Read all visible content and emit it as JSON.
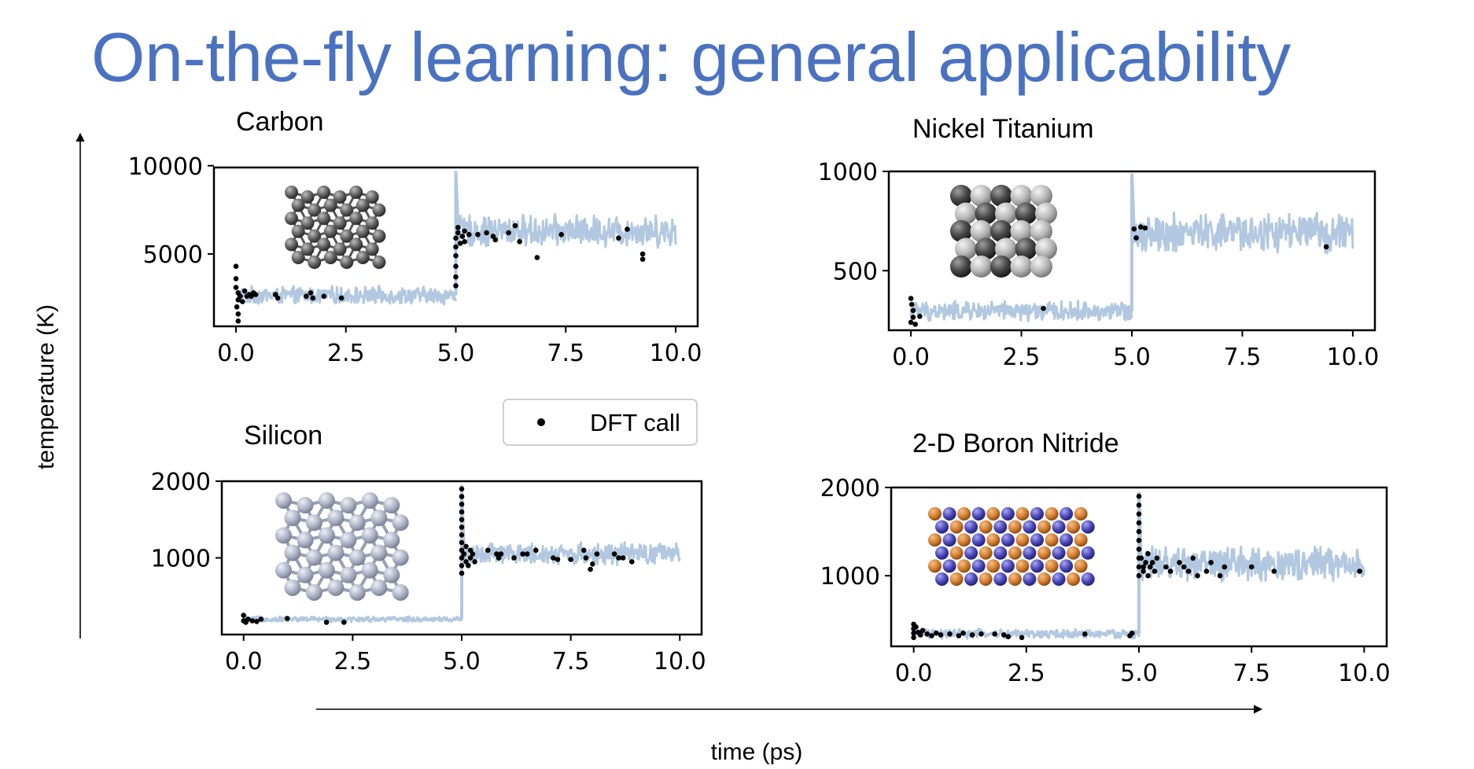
{
  "slide": {
    "title": "On-the-fly learning: general applicability",
    "y_axis_label": "temperature (K)",
    "x_axis_label": "time (ps)"
  },
  "legend": {
    "entries": [
      {
        "label": "DFT call",
        "marker": "black-dot"
      }
    ]
  },
  "colors": {
    "title": "#4a72c1",
    "trajectory": "#b1c8e0",
    "dft_call": "#000000",
    "frame": "#000000"
  },
  "chart_data": [
    {
      "type": "line",
      "title": "Carbon",
      "structure_icon": "carbon-diamond-lattice",
      "xlim": [
        -0.5,
        10.5
      ],
      "ylim": [
        900,
        9900
      ],
      "xticks": [
        0.0,
        2.5,
        5.0,
        7.5,
        10.0
      ],
      "yticks": [
        5000,
        10000
      ],
      "series": [
        {
          "kind": "trajectory",
          "segments": [
            {
              "x0": 0.0,
              "x1": 5.0,
              "mean": 2650,
              "spread": 550
            },
            {
              "x0": 5.0,
              "x1": 10.0,
              "mean": 6300,
              "spread": 1000
            }
          ],
          "spike": {
            "x": 5.0,
            "y": 9700
          }
        },
        {
          "kind": "dft_call",
          "points": [
            [
              0.0,
              4300
            ],
            [
              0.0,
              3600
            ],
            [
              0.0,
              3100
            ],
            [
              0.05,
              2800
            ],
            [
              0.05,
              2400
            ],
            [
              0.02,
              2000
            ],
            [
              0.05,
              1600
            ],
            [
              0.05,
              1200
            ],
            [
              0.1,
              2600
            ],
            [
              0.15,
              2300
            ],
            [
              0.2,
              2900
            ],
            [
              0.25,
              2600
            ],
            [
              0.3,
              2700
            ],
            [
              0.35,
              2600
            ],
            [
              0.4,
              2800
            ],
            [
              0.45,
              2700
            ],
            [
              0.9,
              2700
            ],
            [
              0.95,
              2500
            ],
            [
              1.6,
              2600
            ],
            [
              1.7,
              2800
            ],
            [
              1.75,
              2500
            ],
            [
              2.0,
              2600
            ],
            [
              2.4,
              2500
            ],
            [
              5.0,
              3200
            ],
            [
              5.0,
              3700
            ],
            [
              5.0,
              4300
            ],
            [
              5.0,
              4900
            ],
            [
              5.0,
              5400
            ],
            [
              5.0,
              5900
            ],
            [
              5.05,
              6200
            ],
            [
              5.05,
              6500
            ],
            [
              5.1,
              5600
            ],
            [
              5.15,
              6000
            ],
            [
              5.2,
              6300
            ],
            [
              5.2,
              5700
            ],
            [
              5.3,
              6100
            ],
            [
              5.5,
              6100
            ],
            [
              5.7,
              6200
            ],
            [
              5.85,
              6000
            ],
            [
              5.9,
              5800
            ],
            [
              6.2,
              6200
            ],
            [
              6.35,
              6600
            ],
            [
              6.45,
              5700
            ],
            [
              6.85,
              4800
            ],
            [
              7.4,
              6100
            ],
            [
              8.7,
              5900
            ],
            [
              8.9,
              6400
            ],
            [
              9.25,
              5000
            ],
            [
              9.25,
              4700
            ]
          ]
        }
      ]
    },
    {
      "type": "line",
      "title": "Nickel Titanium",
      "structure_icon": "nickel-titanium-cluster",
      "xlim": [
        -0.5,
        10.5
      ],
      "ylim": [
        200,
        1000
      ],
      "xticks": [
        0.0,
        2.5,
        5.0,
        7.5,
        10.0
      ],
      "yticks": [
        500,
        1000
      ],
      "series": [
        {
          "kind": "trajectory",
          "segments": [
            {
              "x0": 0.0,
              "x1": 5.0,
              "mean": 295,
              "spread": 55
            },
            {
              "x0": 5.0,
              "x1": 10.0,
              "mean": 690,
              "spread": 110
            }
          ],
          "spike": {
            "x": 5.0,
            "y": 990
          }
        },
        {
          "kind": "dft_call",
          "points": [
            [
              0.0,
              360
            ],
            [
              0.02,
              330
            ],
            [
              0.05,
              300
            ],
            [
              0.05,
              265
            ],
            [
              0.0,
              240
            ],
            [
              0.1,
              230
            ],
            [
              0.2,
              270
            ],
            [
              3.0,
              310
            ],
            [
              5.05,
              710
            ],
            [
              5.1,
              665
            ],
            [
              5.2,
              720
            ],
            [
              5.3,
              715
            ],
            [
              9.4,
              620
            ]
          ]
        }
      ]
    },
    {
      "type": "line",
      "title": "Silicon",
      "structure_icon": "silicon-diamond-lattice",
      "xlim": [
        -0.5,
        10.5
      ],
      "ylim": [
        0,
        2000
      ],
      "xticks": [
        0.0,
        2.5,
        5.0,
        7.5,
        10.0
      ],
      "yticks": [
        1000,
        2000
      ],
      "series": [
        {
          "kind": "trajectory",
          "segments": [
            {
              "x0": 0.0,
              "x1": 5.0,
              "mean": 200,
              "spread": 40
            },
            {
              "x0": 5.0,
              "x1": 10.0,
              "mean": 1050,
              "spread": 160
            }
          ],
          "spike": {
            "x": 5.0,
            "y": 1950
          }
        },
        {
          "kind": "dft_call",
          "points": [
            [
              0.0,
              250
            ],
            [
              0.0,
              180
            ],
            [
              0.05,
              160
            ],
            [
              0.1,
              200
            ],
            [
              0.2,
              180
            ],
            [
              0.3,
              170
            ],
            [
              0.4,
              200
            ],
            [
              1.0,
              210
            ],
            [
              1.9,
              160
            ],
            [
              2.3,
              160
            ],
            [
              5.0,
              1900
            ],
            [
              5.0,
              1800
            ],
            [
              5.0,
              1700
            ],
            [
              5.0,
              1600
            ],
            [
              5.0,
              1500
            ],
            [
              5.0,
              1400
            ],
            [
              5.0,
              1300
            ],
            [
              5.0,
              1200
            ],
            [
              5.0,
              1100
            ],
            [
              5.0,
              1000
            ],
            [
              5.0,
              900
            ],
            [
              5.0,
              800
            ],
            [
              5.05,
              1050
            ],
            [
              5.1,
              950
            ],
            [
              5.1,
              1150
            ],
            [
              5.15,
              900
            ],
            [
              5.2,
              1000
            ],
            [
              5.2,
              1100
            ],
            [
              5.25,
              1050
            ],
            [
              5.3,
              950
            ],
            [
              5.6,
              1100
            ],
            [
              5.8,
              1050
            ],
            [
              5.85,
              1000
            ],
            [
              5.9,
              1050
            ],
            [
              6.2,
              1000
            ],
            [
              6.4,
              1050
            ],
            [
              6.5,
              1050
            ],
            [
              6.7,
              1100
            ],
            [
              7.1,
              1000
            ],
            [
              7.2,
              980
            ],
            [
              7.5,
              980
            ],
            [
              7.8,
              1100
            ],
            [
              7.85,
              1000
            ],
            [
              7.95,
              850
            ],
            [
              8.0,
              920
            ],
            [
              8.1,
              1050
            ],
            [
              8.5,
              1050
            ],
            [
              8.6,
              1000
            ],
            [
              8.7,
              1000
            ],
            [
              8.9,
              950
            ]
          ]
        }
      ]
    },
    {
      "type": "line",
      "title": "2-D Boron Nitride",
      "structure_icon": "boron-nitride-sheet",
      "xlim": [
        -0.5,
        10.5
      ],
      "ylim": [
        200,
        2000
      ],
      "xticks": [
        0.0,
        2.5,
        5.0,
        7.5,
        10.0
      ],
      "yticks": [
        1000,
        2000
      ],
      "series": [
        {
          "kind": "trajectory",
          "segments": [
            {
              "x0": 0.0,
              "x1": 5.0,
              "mean": 340,
              "spread": 60
            },
            {
              "x0": 5.0,
              "x1": 10.0,
              "mean": 1130,
              "spread": 220
            }
          ],
          "spike": {
            "x": 5.0,
            "y": 1950
          }
        },
        {
          "kind": "dft_call",
          "points": [
            [
              0.0,
              450
            ],
            [
              0.0,
              400
            ],
            [
              0.0,
              350
            ],
            [
              0.0,
              300
            ],
            [
              0.05,
              420
            ],
            [
              0.1,
              360
            ],
            [
              0.15,
              330
            ],
            [
              0.2,
              380
            ],
            [
              0.3,
              340
            ],
            [
              0.4,
              320
            ],
            [
              0.5,
              350
            ],
            [
              0.6,
              330
            ],
            [
              0.8,
              340
            ],
            [
              1.0,
              320
            ],
            [
              1.1,
              350
            ],
            [
              1.3,
              330
            ],
            [
              1.5,
              340
            ],
            [
              1.8,
              340
            ],
            [
              2.0,
              330
            ],
            [
              2.1,
              310
            ],
            [
              2.4,
              300
            ],
            [
              3.8,
              340
            ],
            [
              4.8,
              320
            ],
            [
              4.85,
              350
            ],
            [
              5.0,
              1900
            ],
            [
              5.0,
              1800
            ],
            [
              5.0,
              1700
            ],
            [
              5.0,
              1600
            ],
            [
              5.0,
              1500
            ],
            [
              5.0,
              1400
            ],
            [
              5.0,
              1300
            ],
            [
              5.0,
              1200
            ],
            [
              5.0,
              1100
            ],
            [
              5.0,
              1000
            ],
            [
              5.05,
              1200
            ],
            [
              5.1,
              1100
            ],
            [
              5.1,
              1050
            ],
            [
              5.15,
              1150
            ],
            [
              5.2,
              1000
            ],
            [
              5.2,
              1250
            ],
            [
              5.25,
              1100
            ],
            [
              5.3,
              1150
            ],
            [
              5.35,
              1050
            ],
            [
              5.4,
              1200
            ],
            [
              5.6,
              1100
            ],
            [
              5.7,
              1050
            ],
            [
              5.9,
              1150
            ],
            [
              6.0,
              1100
            ],
            [
              6.1,
              1050
            ],
            [
              6.2,
              1200
            ],
            [
              6.3,
              1000
            ],
            [
              6.5,
              1050
            ],
            [
              6.6,
              1150
            ],
            [
              6.8,
              1000
            ],
            [
              6.9,
              1100
            ],
            [
              7.5,
              1100
            ],
            [
              8.0,
              1050
            ],
            [
              9.9,
              1050
            ]
          ]
        }
      ]
    }
  ]
}
